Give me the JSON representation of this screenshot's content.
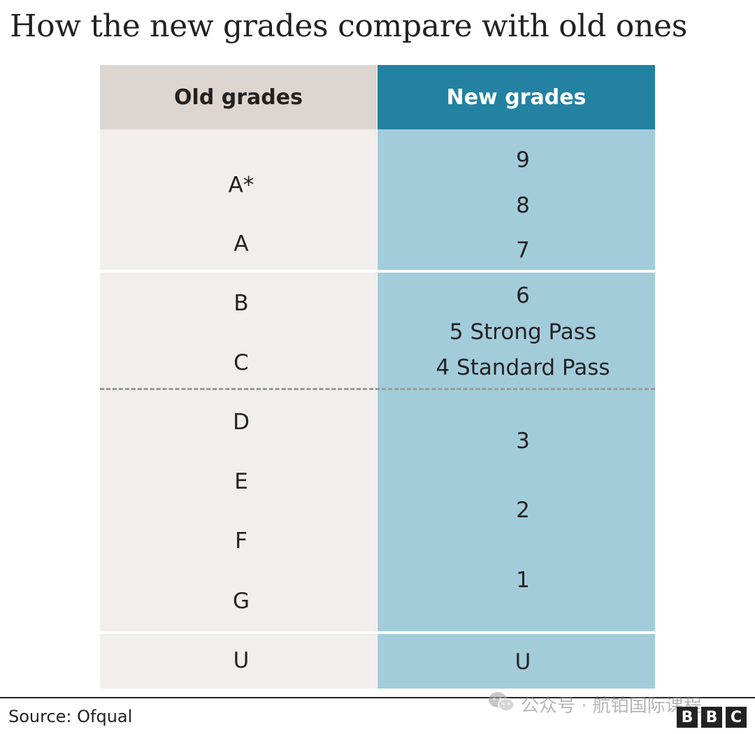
{
  "title": "How the new grades compare with old ones",
  "table": {
    "header_old": "Old grades",
    "header_new": "New grades",
    "old_grades": [
      "A*",
      "A",
      "B",
      "C",
      "D",
      "E",
      "F",
      "G",
      "U"
    ],
    "new_grades": [
      "9",
      "8",
      "7",
      "6",
      "5 Strong Pass",
      "4 Standard Pass",
      "3",
      "2",
      "1",
      "U"
    ]
  },
  "source": "Source: Ofqual",
  "watermark": "公众号 · 航铂国际课程",
  "logo": [
    "B",
    "B",
    "C"
  ],
  "colors": {
    "old_header": "#ddd5cf",
    "old_body": "#f2eeeb",
    "new_header": "#2382a2",
    "new_body": "#a3ccdb"
  }
}
